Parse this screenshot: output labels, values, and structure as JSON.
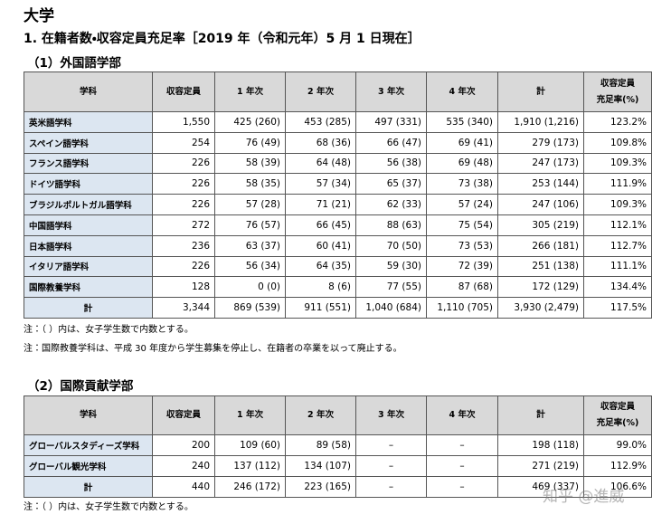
{
  "title": "大学",
  "section_heading": "1. 在籍者数・収容定員充足率［2019 年（令和元年）5 月 1 日現在］",
  "tables": [
    {
      "heading": "（1）外国語学部",
      "columns": [
        "学科",
        "収容定員",
        "1 年次",
        "2 年次",
        "3 年次",
        "4 年次",
        "計",
        [
          "収容定員",
          "充足率(%)"
        ]
      ],
      "rows": [
        [
          "英米語学科",
          "1,550",
          "425 (260)",
          "453 (285)",
          "497 (331)",
          "535 (340)",
          "1,910 (1,216)",
          "123.2%"
        ],
        [
          "スペイン語学科",
          "254",
          "76 (49)",
          "68 (36)",
          "66 (47)",
          "69 (41)",
          "279 (173)",
          "109.8%"
        ],
        [
          "フランス語学科",
          "226",
          "58 (39)",
          "64 (48)",
          "56 (38)",
          "69 (48)",
          "247 (173)",
          "109.3%"
        ],
        [
          "ドイツ語学科",
          "226",
          "58 (35)",
          "57 (34)",
          "65 (37)",
          "73 (38)",
          "253 (144)",
          "111.9%"
        ],
        [
          "ブラジルポルトガル語学科",
          "226",
          "57 (28)",
          "71 (21)",
          "62 (33)",
          "57 (24)",
          "247 (106)",
          "109.3%"
        ],
        [
          "中国語学科",
          "272",
          "76 (57)",
          "66 (45)",
          "88 (63)",
          "75 (54)",
          "305 (219)",
          "112.1%"
        ],
        [
          "日本語学科",
          "236",
          "63 (37)",
          "60 (41)",
          "70 (50)",
          "73 (53)",
          "266 (181)",
          "112.7%"
        ],
        [
          "イタリア語学科",
          "226",
          "56 (34)",
          "64 (35)",
          "59 (30)",
          "72 (39)",
          "251 (138)",
          "111.1%"
        ],
        [
          "国際教養学科",
          "128",
          "0 (0)",
          "8 (6)",
          "77 (55)",
          "87 (68)",
          "172 (129)",
          "134.4%"
        ],
        [
          "計",
          "3,344",
          "869 (539)",
          "911 (551)",
          "1,040 (684)",
          "1,110 (705)",
          "3,930 (2,479)",
          "117.5%"
        ]
      ],
      "notes": [
        "注：（ ）内は、女子学生数で内数とする。",
        "注：国際教養学科は、平成 30 年度から学生募集を停止し、在籍者の卒業を以って廃止する。"
      ]
    },
    {
      "heading": "（2）国際貢献学部",
      "columns": [
        "学科",
        "収容定員",
        "1 年次",
        "2 年次",
        "3 年次",
        "4 年次",
        "計",
        [
          "収容定員",
          "充足率(%)"
        ]
      ],
      "rows": [
        [
          "グローバルスタディーズ学科",
          "200",
          "109 (60)",
          "89 (58)",
          "–",
          "–",
          "198 (118)",
          "99.0%"
        ],
        [
          "グローバル観光学科",
          "240",
          "137 (112)",
          "134 (107)",
          "–",
          "–",
          "271 (219)",
          "112.9%"
        ],
        [
          "計",
          "440",
          "246 (172)",
          "223 (165)",
          "–",
          "–",
          "469 (337)",
          "106.6%"
        ]
      ],
      "notes": [
        "注：（ ）内は、女子学生数で内数とする。"
      ]
    }
  ],
  "watermark": "知乎 @進威"
}
